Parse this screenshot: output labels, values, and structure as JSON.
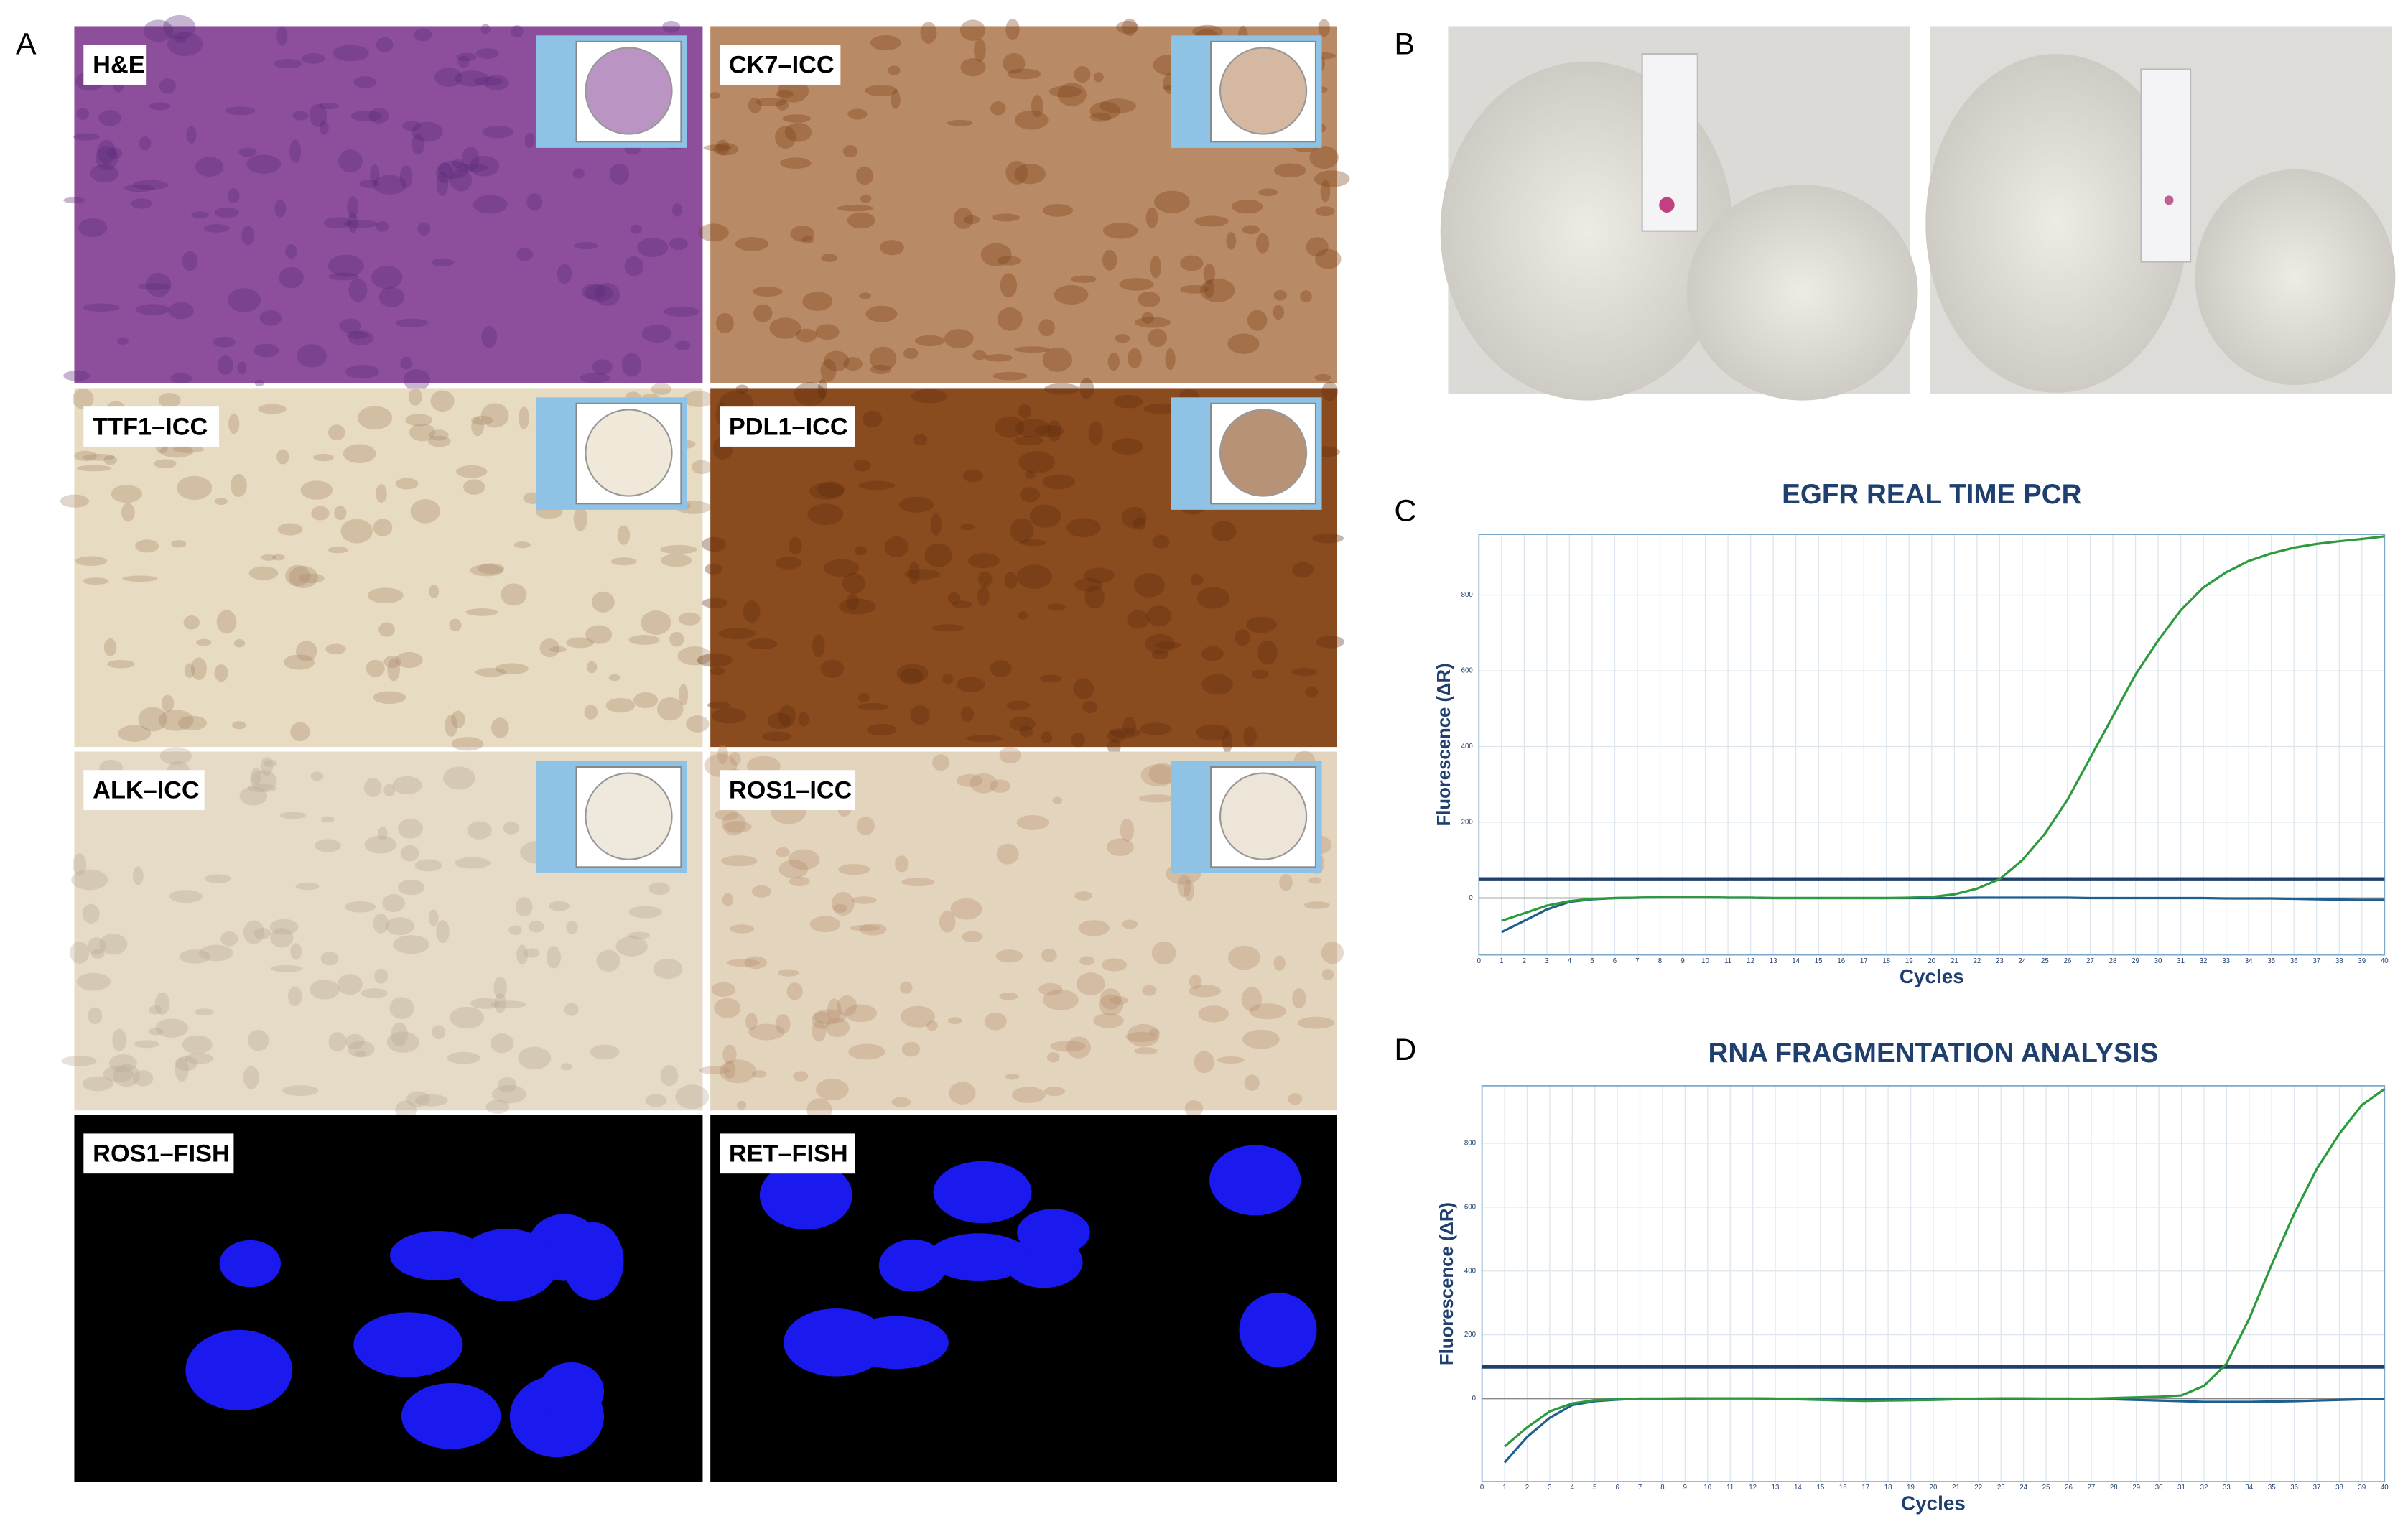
{
  "panel_labels": [
    "A",
    "B",
    "C",
    "D"
  ],
  "tiles": [
    {
      "label": "H&E"
    },
    {
      "label": "CK7–ICC"
    },
    {
      "label": "TTF1–ICC"
    },
    {
      "label": "PDL1–ICC"
    },
    {
      "label": "ALK–ICC"
    },
    {
      "label": "ROS1–ICC"
    },
    {
      "label": "ROS1–FISH"
    },
    {
      "label": "RET–FISH"
    }
  ],
  "chart_data": [
    {
      "type": "line",
      "title": "EGFR REAL TIME PCR",
      "xlabel": "Cycles",
      "ylabel": "Fluorescence (ΔR)",
      "x": [
        1,
        2,
        3,
        4,
        5,
        6,
        7,
        8,
        9,
        10,
        11,
        12,
        13,
        14,
        15,
        16,
        17,
        18,
        19,
        20,
        21,
        22,
        23,
        24,
        25,
        26,
        27,
        28,
        29,
        30,
        31,
        32,
        33,
        34,
        35,
        36,
        37,
        38,
        39,
        40
      ],
      "xlim": [
        0,
        40
      ],
      "ylim": [
        -150,
        960
      ],
      "xticks": [
        0,
        1,
        2,
        3,
        4,
        5,
        6,
        7,
        8,
        9,
        10,
        11,
        12,
        13,
        14,
        15,
        16,
        17,
        18,
        19,
        20,
        21,
        22,
        23,
        24,
        25,
        26,
        27,
        28,
        29,
        30,
        31,
        32,
        33,
        34,
        35,
        36,
        37,
        38,
        39,
        40
      ],
      "yticks": [
        0,
        200,
        400,
        600,
        800
      ],
      "grid": true,
      "threshold": 50,
      "threshold_color": "#1f3f6e",
      "series": [
        {
          "color": "#1f5f8f",
          "values": [
            -90,
            -60,
            -30,
            -10,
            -3,
            0,
            1,
            2,
            2,
            2,
            1,
            1,
            0,
            0,
            0,
            0,
            0,
            0,
            0,
            0,
            0,
            1,
            1,
            1,
            1,
            1,
            0,
            0,
            0,
            0,
            0,
            0,
            -1,
            -1,
            -1,
            -2,
            -3,
            -4,
            -5,
            -5
          ]
        },
        {
          "color": "#2e9a3e",
          "values": [
            -60,
            -40,
            -20,
            -8,
            -2,
            0,
            1,
            2,
            2,
            2,
            1,
            1,
            0,
            0,
            0,
            0,
            0,
            0,
            1,
            3,
            10,
            25,
            50,
            100,
            170,
            260,
            370,
            480,
            590,
            680,
            760,
            820,
            860,
            890,
            910,
            925,
            935,
            942,
            948,
            955
          ]
        }
      ]
    },
    {
      "type": "line",
      "title": "RNA FRAGMENTATION ANALYSIS",
      "xlabel": "Cycles",
      "ylabel": "Fluorescence (ΔR)",
      "x": [
        1,
        2,
        3,
        4,
        5,
        6,
        7,
        8,
        9,
        10,
        11,
        12,
        13,
        14,
        15,
        16,
        17,
        18,
        19,
        20,
        21,
        22,
        23,
        24,
        25,
        26,
        27,
        28,
        29,
        30,
        31,
        32,
        33,
        34,
        35,
        36,
        37,
        38,
        39,
        40
      ],
      "xlim": [
        0,
        40
      ],
      "ylim": [
        -260,
        980
      ],
      "xticks": [
        0,
        1,
        2,
        3,
        4,
        5,
        6,
        7,
        8,
        9,
        10,
        11,
        12,
        13,
        14,
        15,
        16,
        17,
        18,
        19,
        20,
        21,
        22,
        23,
        24,
        25,
        26,
        27,
        28,
        29,
        30,
        31,
        32,
        33,
        34,
        35,
        36,
        37,
        38,
        39,
        40
      ],
      "yticks": [
        0,
        200,
        400,
        600,
        800
      ],
      "grid": true,
      "threshold": 100,
      "threshold_color": "#1f3f6e",
      "series": [
        {
          "color": "#1f5f8f",
          "values": [
            -200,
            -120,
            -60,
            -20,
            -8,
            -3,
            0,
            0,
            1,
            1,
            1,
            1,
            0,
            0,
            0,
            0,
            -1,
            -1,
            -1,
            0,
            0,
            0,
            0,
            0,
            0,
            0,
            -1,
            -2,
            -4,
            -6,
            -8,
            -10,
            -10,
            -10,
            -9,
            -8,
            -6,
            -4,
            -2,
            0
          ]
        },
        {
          "color": "#2e9a3e",
          "values": [
            -150,
            -90,
            -40,
            -15,
            -5,
            -2,
            0,
            0,
            0,
            1,
            1,
            1,
            0,
            -2,
            -4,
            -6,
            -7,
            -6,
            -5,
            -4,
            -2,
            0,
            1,
            1,
            0,
            0,
            0,
            2,
            4,
            6,
            10,
            40,
            110,
            250,
            420,
            580,
            720,
            830,
            920,
            970
          ]
        }
      ]
    }
  ]
}
